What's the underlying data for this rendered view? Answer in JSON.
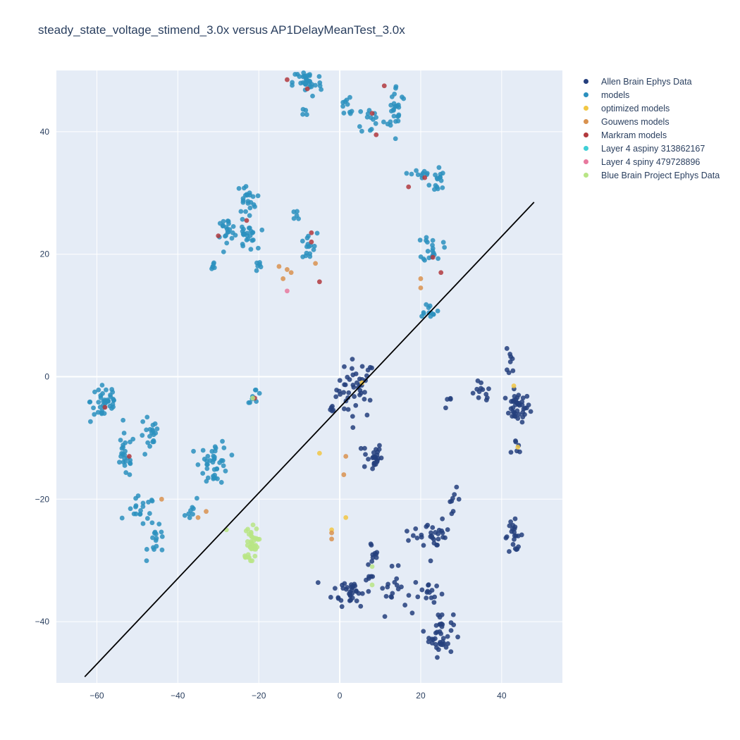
{
  "chart_data": {
    "type": "scatter",
    "title": "steady_state_voltage_stimend_3.0x versus AP1DelayMeanTest_3.0x",
    "xlabel": "",
    "ylabel": "",
    "xlim": [
      -70,
      55
    ],
    "ylim": [
      -50,
      50
    ],
    "xticks": [
      -60,
      -40,
      -20,
      0,
      20,
      40
    ],
    "yticks": [
      -40,
      -20,
      0,
      20,
      40
    ],
    "tick_labels_x": [
      "−60",
      "−40",
      "−20",
      "0",
      "20",
      "40"
    ],
    "tick_labels_y": [
      "−40",
      "−20",
      "0",
      "20",
      "40"
    ],
    "grid": true,
    "legend_position": "right",
    "line": {
      "x": [
        -63,
        48
      ],
      "y": [
        -49,
        28.5
      ],
      "color": "#000000"
    },
    "series": [
      {
        "name": "Allen Brain Ephys Data",
        "color": "#253f7d",
        "clusters": [
          [
            4,
            -2,
            4,
            4,
            45
          ],
          [
            44,
            -5,
            2.5,
            2,
            40
          ],
          [
            35,
            -3,
            2,
            2,
            12
          ],
          [
            42,
            2,
            1,
            2,
            8
          ],
          [
            44,
            -11,
            1.5,
            1.5,
            6
          ],
          [
            8,
            -13,
            2,
            2,
            25
          ],
          [
            8,
            -30,
            1.5,
            4,
            14
          ],
          [
            3,
            -35,
            4,
            2,
            35
          ],
          [
            13,
            -35,
            3,
            3,
            18
          ],
          [
            22,
            -35,
            3,
            2,
            15
          ],
          [
            25,
            -42,
            2.5,
            3,
            40
          ],
          [
            24,
            -26,
            2.5,
            2,
            22
          ],
          [
            28,
            -20,
            1.5,
            1.5,
            8
          ],
          [
            43,
            -26,
            2,
            2,
            22
          ],
          [
            18,
            -26,
            2,
            1,
            8
          ],
          [
            27,
            -4,
            1,
            1,
            4
          ],
          [
            -2,
            -6,
            1,
            1,
            5
          ]
        ]
      },
      {
        "name": "models",
        "color": "#2b90be",
        "clusters": [
          [
            -58,
            -4,
            3,
            3,
            40
          ],
          [
            -53,
            -13,
            2,
            3,
            25
          ],
          [
            -47,
            -10,
            2,
            3,
            20
          ],
          [
            -49,
            -22,
            3,
            2,
            20
          ],
          [
            -45,
            -27,
            2,
            2,
            15
          ],
          [
            -31,
            -14,
            3,
            3,
            40
          ],
          [
            -36,
            -22,
            2,
            1.5,
            8
          ],
          [
            -21,
            -3,
            1.5,
            1,
            8
          ],
          [
            -28,
            24,
            2,
            1.5,
            20
          ],
          [
            -23,
            23,
            2,
            2,
            25
          ],
          [
            -23,
            29,
            2,
            2,
            22
          ],
          [
            -8,
            21,
            2,
            2,
            15
          ],
          [
            -11,
            26,
            1.5,
            1,
            5
          ],
          [
            -8,
            48,
            3,
            2,
            35
          ],
          [
            2,
            44,
            2,
            2,
            10
          ],
          [
            8,
            42,
            3,
            2,
            15
          ],
          [
            14,
            44,
            2,
            3,
            25
          ],
          [
            20,
            33,
            2,
            1.5,
            10
          ],
          [
            24,
            32,
            1.5,
            2,
            15
          ],
          [
            23,
            21,
            2,
            2,
            20
          ],
          [
            22,
            11,
            2,
            1,
            12
          ],
          [
            -9,
            43,
            1,
            1,
            4
          ],
          [
            -21,
            18,
            2,
            1,
            6
          ],
          [
            -31,
            18,
            1,
            1,
            6
          ]
        ]
      },
      {
        "name": "optimized models",
        "color": "#f2c744",
        "points": [
          [
            43,
            -1.5
          ],
          [
            44,
            -11.5
          ],
          [
            -5,
            -12.5
          ],
          [
            -2,
            -25
          ],
          [
            1.5,
            -23
          ],
          [
            5.5,
            -1
          ]
        ]
      },
      {
        "name": "Gouwens models",
        "color": "#d9924f",
        "points": [
          [
            -15,
            18
          ],
          [
            -13,
            17.5
          ],
          [
            -14,
            16
          ],
          [
            -12,
            17
          ],
          [
            -6,
            18.5
          ],
          [
            -2,
            -26.5
          ],
          [
            -2,
            -25.5
          ],
          [
            1,
            -16
          ],
          [
            1.5,
            -13
          ],
          [
            20,
            16
          ],
          [
            20,
            14.5
          ],
          [
            -35,
            -23
          ],
          [
            -33,
            -22
          ],
          [
            -44,
            -20
          ]
        ]
      },
      {
        "name": "Markram models",
        "color": "#b23a3e",
        "points": [
          [
            -13,
            48.5
          ],
          [
            -8,
            47
          ],
          [
            -7,
            23.5
          ],
          [
            -7,
            22
          ],
          [
            -5,
            15.5
          ],
          [
            8,
            43
          ],
          [
            11,
            47.5
          ],
          [
            9,
            39.5
          ],
          [
            17,
            31
          ],
          [
            21,
            32.5
          ],
          [
            23,
            19.5
          ],
          [
            25,
            17
          ],
          [
            -23,
            25.5
          ],
          [
            -30,
            23
          ],
          [
            -52,
            -13
          ],
          [
            -58,
            -5
          ],
          [
            -21,
            -3.5
          ]
        ]
      },
      {
        "name": "Layer 4 aspiny 313862167",
        "color": "#3fcfd6",
        "points": []
      },
      {
        "name": "Layer 4 spiny 479728896",
        "color": "#e8799e",
        "points": [
          [
            -13,
            14
          ]
        ]
      },
      {
        "name": "Blue Brain Project Ephys Data",
        "color": "#b8e585",
        "clusters": [
          [
            -22,
            -27,
            1.5,
            2,
            30
          ],
          [
            -23,
            -29.5,
            1.5,
            0.5,
            8
          ]
        ],
        "points": [
          [
            -28,
            -25
          ],
          [
            8,
            -31
          ],
          [
            8,
            -34
          ],
          [
            -21.5,
            -3.5
          ]
        ]
      }
    ]
  }
}
